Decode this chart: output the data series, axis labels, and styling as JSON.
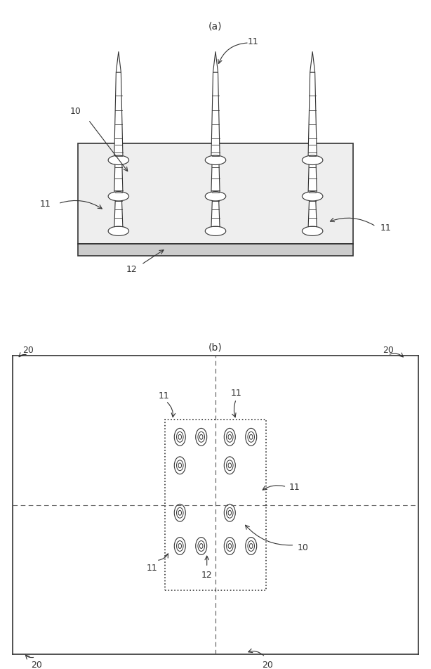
{
  "fig_width": 6.14,
  "fig_height": 9.53,
  "bg_color": "#ffffff",
  "label_a": "(a)",
  "label_b": "(b)",
  "label_10_a": "10",
  "label_11_a_top": "11",
  "label_11_a_left": "11",
  "label_11_a_right": "11",
  "label_12_a": "12",
  "label_20_tl": "20",
  "label_20_tr": "20",
  "label_20_bl": "20",
  "label_20_br": "20",
  "label_11_b_tl": "11",
  "label_11_b_tr": "11",
  "label_11_b_br": "11",
  "label_11_b_bl": "11",
  "label_12_b": "12",
  "label_10_b": "10"
}
